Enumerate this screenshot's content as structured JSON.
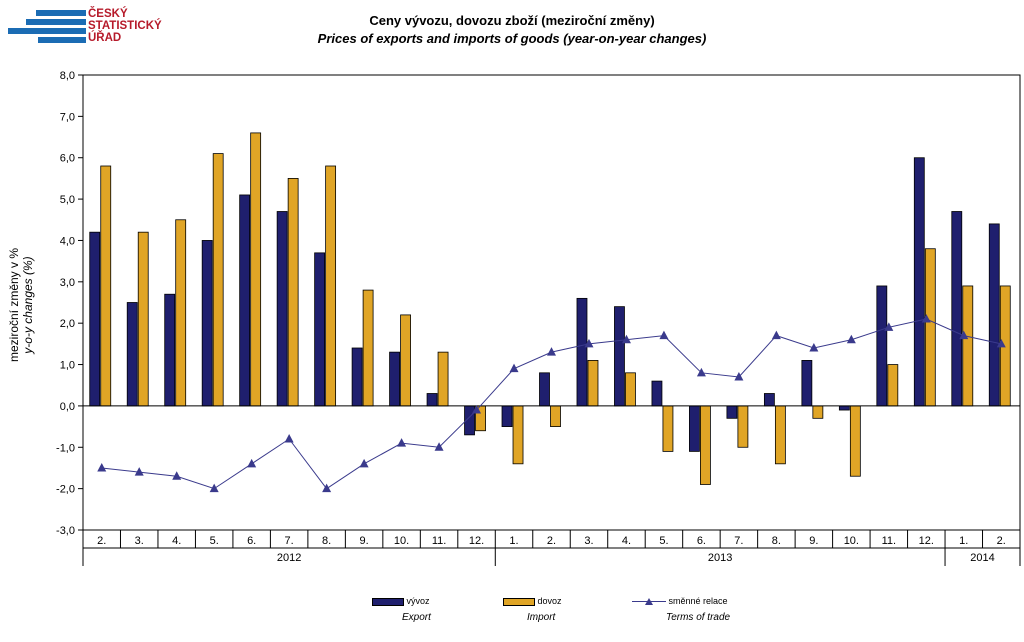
{
  "logo": {
    "line1": "ČESKÝ",
    "line2": "STATISTICKÝ",
    "line3": "ÚŘAD"
  },
  "colors": {
    "export": "#1f1f6e",
    "import": "#e0a526",
    "terms": "#3a3a8c",
    "logo_blue": "#1b6cb4",
    "logo_red": "#b61a2a"
  },
  "chart_data": {
    "type": "bar",
    "title": "Ceny vývozu, dovozu zboží (meziroční změny)",
    "subtitle": "Prices of exports and imports of goods (year-on-year changes)",
    "ylabel": "meziroční změny v %",
    "ylabel_en": "y-o-y changes (%)",
    "ylim": [
      -3.0,
      8.0
    ],
    "yticks": [
      "8,0",
      "7,0",
      "6,0",
      "5,0",
      "4,0",
      "3,0",
      "2,0",
      "1,0",
      "0,0",
      "-1,0",
      "-2,0",
      "-3,0"
    ],
    "ytick_values": [
      8,
      7,
      6,
      5,
      4,
      3,
      2,
      1,
      0,
      -1,
      -2,
      -3
    ],
    "categories": [
      "2.",
      "3.",
      "4.",
      "5.",
      "6.",
      "7.",
      "8.",
      "9.",
      "10.",
      "11.",
      "12.",
      "1.",
      "2.",
      "3.",
      "4.",
      "5.",
      "6.",
      "7.",
      "8.",
      "9.",
      "10.",
      "11.",
      "12.",
      "1.",
      "2."
    ],
    "years": [
      {
        "label": "2012",
        "count": 11
      },
      {
        "label": "2013",
        "count": 12
      },
      {
        "label": "2014",
        "count": 2
      }
    ],
    "series": [
      {
        "name": "vývoz",
        "name_en": "Export",
        "kind": "bar",
        "values": [
          4.2,
          2.5,
          2.7,
          4.0,
          5.1,
          4.7,
          3.7,
          1.4,
          1.3,
          0.3,
          -0.7,
          -0.5,
          0.8,
          2.6,
          2.4,
          0.6,
          -1.1,
          -0.3,
          0.3,
          1.1,
          -0.1,
          2.9,
          6.0,
          4.7,
          4.4
        ]
      },
      {
        "name": "dovoz",
        "name_en": "Import",
        "kind": "bar",
        "values": [
          5.8,
          4.2,
          4.5,
          6.1,
          6.6,
          5.5,
          5.8,
          2.8,
          2.2,
          1.3,
          -0.6,
          -1.4,
          -0.5,
          1.1,
          0.8,
          -1.1,
          -1.9,
          -1.0,
          -1.4,
          -0.3,
          -1.7,
          1.0,
          3.8,
          2.9,
          2.9
        ]
      },
      {
        "name": "směnné relace",
        "name_en": "Terms of trade",
        "kind": "line",
        "values": [
          -1.5,
          -1.6,
          -1.7,
          -2.0,
          -1.4,
          -0.8,
          -2.0,
          -1.4,
          -0.9,
          -1.0,
          -0.1,
          0.9,
          1.3,
          1.5,
          1.6,
          1.7,
          0.8,
          0.7,
          1.7,
          1.4,
          1.6,
          1.9,
          2.1,
          1.7,
          1.5
        ]
      }
    ],
    "grid": false,
    "legend_position": "bottom"
  }
}
